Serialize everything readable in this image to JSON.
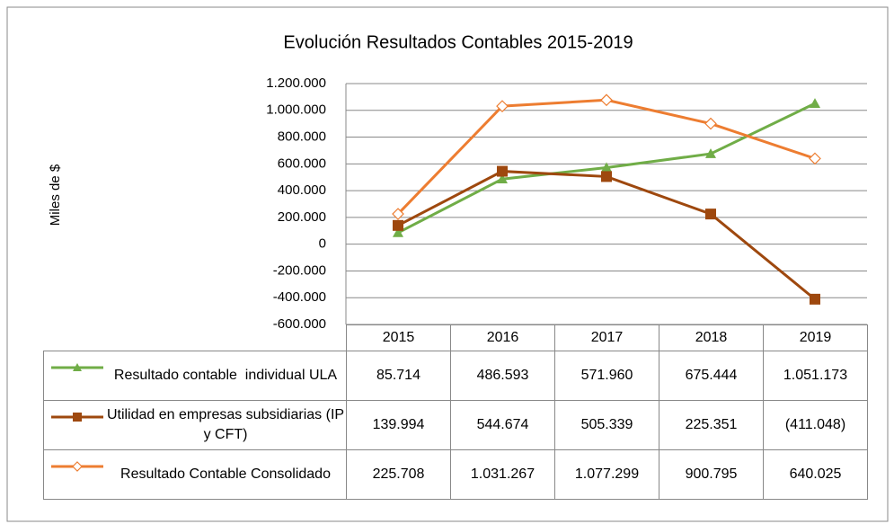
{
  "chart_data": {
    "type": "line",
    "title": "Evolución Resultados Contables 2015-2019",
    "y_label": "Miles de $",
    "categories": [
      "2015",
      "2016",
      "2017",
      "2018",
      "2019"
    ],
    "series": [
      {
        "name": "Resultado contable  individual ULA",
        "color": "#70ad47",
        "marker": "triangle",
        "values": [
          85714,
          486593,
          571960,
          675444,
          1051173
        ],
        "value_labels": [
          "85.714",
          "486.593",
          "571.960",
          "675.444",
          "1.051.173"
        ]
      },
      {
        "name": "Utilidad en empresas subsidiarias (IP y CFT)",
        "color": "#9e480e",
        "marker": "square",
        "values": [
          139994,
          544674,
          505339,
          225351,
          -411048
        ],
        "value_labels": [
          "139.994",
          "544.674",
          "505.339",
          "225.351",
          "(411.048)"
        ]
      },
      {
        "name": "Resultado Contable Consolidado",
        "color": "#ed7d31",
        "marker": "diamond",
        "values": [
          225708,
          1031267,
          1077299,
          900795,
          640025
        ],
        "value_labels": [
          "225.708",
          "1.031.267",
          "1.077.299",
          "900.795",
          "640.025"
        ]
      }
    ],
    "ylim": [
      -600000,
      1200000
    ],
    "yticks": [
      {
        "value": -600000,
        "label": "-600.000"
      },
      {
        "value": -400000,
        "label": "-400.000"
      },
      {
        "value": -200000,
        "label": "-200.000"
      },
      0,
      {
        "value": 200000,
        "label": "200.000"
      },
      {
        "value": 400000,
        "label": "400.000"
      },
      {
        "value": 600000,
        "label": "600.000"
      },
      {
        "value": 800000,
        "label": "800.000"
      },
      {
        "value": 1000000,
        "label": "1.000.000"
      },
      {
        "value": 1200000,
        "label": "1.200.000"
      }
    ],
    "grid": true
  }
}
